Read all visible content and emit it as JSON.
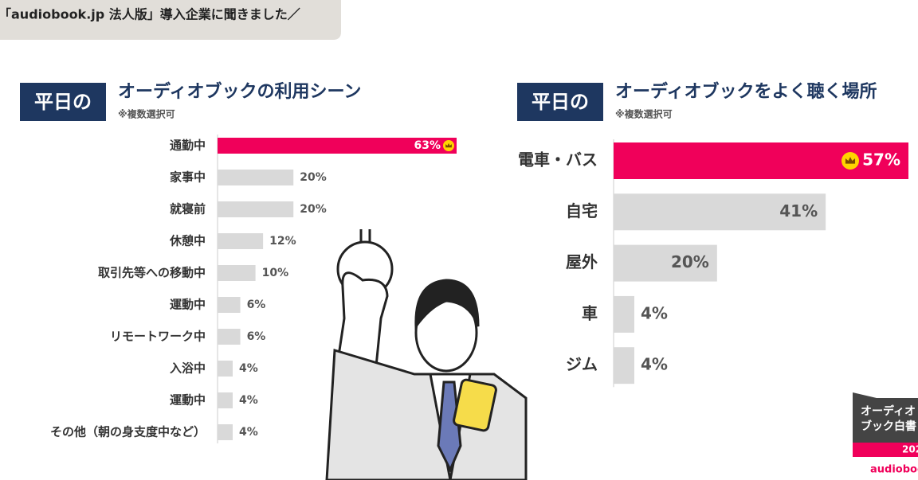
{
  "header": {
    "text": "「audiobook.jp 法人版」導入企業に聞きました／"
  },
  "chart_data": [
    {
      "type": "bar",
      "badge": "平日の",
      "title": "オーディオブックの利用シーン",
      "subtitle": "※複数選択可",
      "categories": [
        "通勤中",
        "家事中",
        "就寝前",
        "休憩中",
        "取引先等への移動中",
        "運動中",
        "リモートワーク中",
        "入浴中",
        "運動中",
        "その他（朝の身支度中など）"
      ],
      "values": [
        63,
        20,
        20,
        12,
        10,
        6,
        6,
        4,
        4,
        4
      ],
      "value_labels": [
        "63%",
        "20%",
        "20%",
        "12%",
        "10%",
        "6%",
        "6%",
        "4%",
        "4%",
        "4%"
      ],
      "colors": [
        "#f0005a",
        "#d9d9d9",
        "#d9d9d9",
        "#d9d9d9",
        "#d9d9d9",
        "#d9d9d9",
        "#d9d9d9",
        "#d9d9d9",
        "#d9d9d9",
        "#d9d9d9"
      ]
    },
    {
      "type": "bar",
      "badge": "平日の",
      "title": "オーディオブックをよく聴く場所",
      "subtitle": "※複数選択可",
      "categories": [
        "電車・バス",
        "自宅",
        "屋外",
        "車",
        "ジム"
      ],
      "values": [
        57,
        41,
        20,
        4,
        4
      ],
      "value_labels": [
        "57%",
        "41%",
        "20%",
        "4%",
        "4%"
      ],
      "colors": [
        "#f0005a",
        "#d9d9d9",
        "#d9d9d9",
        "#d9d9d9",
        "#d9d9d9"
      ]
    }
  ],
  "logo": {
    "lines": [
      "オーディオ",
      "ブック白書"
    ],
    "year": "202",
    "brand": "audioboo"
  }
}
